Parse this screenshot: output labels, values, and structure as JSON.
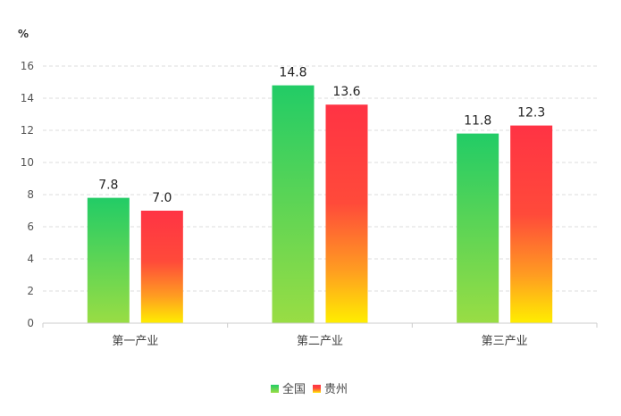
{
  "chart_data": {
    "type": "bar",
    "unit_label": "%",
    "categories": [
      "第一产业",
      "第二产业",
      "第三产业"
    ],
    "series": [
      {
        "name": "全国",
        "values": [
          7.8,
          14.8,
          11.8
        ]
      },
      {
        "name": "贵州",
        "values": [
          7.0,
          13.6,
          12.3
        ]
      }
    ],
    "data_labels": [
      [
        "7.8",
        "14.8",
        "11.8"
      ],
      [
        "7.0",
        "13.6",
        "12.3"
      ]
    ],
    "ylim": [
      0,
      16
    ],
    "yticks": [
      0,
      2,
      4,
      6,
      8,
      10,
      12,
      14,
      16
    ],
    "grid": true,
    "legend_position": "bottom-center",
    "colors": {
      "national_top": "#22cc66",
      "national_bottom": "#99dd44",
      "guizhou_top": "#ff3344",
      "guizhou_mid": "#ff7733",
      "guizhou_bottom": "#ffee00",
      "grid": "#dddddd",
      "axis": "#cccccc"
    }
  }
}
